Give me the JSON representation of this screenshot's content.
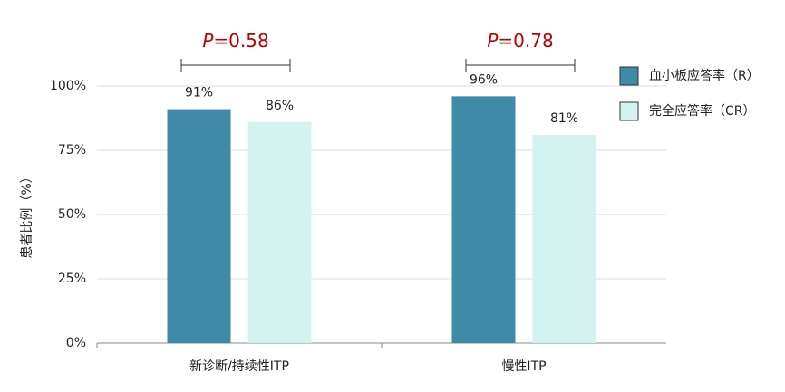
{
  "chart_data": {
    "type": "bar",
    "y_label": "患者比例（%）",
    "categories": [
      "新诊断/持续性ITP",
      "慢性ITP"
    ],
    "series": [
      {
        "name": "血小板应答率（R）",
        "color": "#3e8aa8",
        "values": [
          91,
          96
        ],
        "value_labels": [
          "91%",
          "96%"
        ]
      },
      {
        "name": "完全应答率（CR）",
        "color": "#d4f3f0",
        "values": [
          86,
          81
        ],
        "value_labels": [
          "86%",
          "81%"
        ]
      }
    ],
    "annotations": [
      "P=0.58",
      "P=0.78"
    ],
    "ylim": [
      0,
      100
    ],
    "yticks": [
      {
        "value": 0,
        "label": "0%"
      },
      {
        "value": 25,
        "label": "25%"
      },
      {
        "value": 50,
        "label": "50%"
      },
      {
        "value": 75,
        "label": "75%"
      },
      {
        "value": 100,
        "label": "100%"
      }
    ],
    "grid": true,
    "legend": "right"
  }
}
